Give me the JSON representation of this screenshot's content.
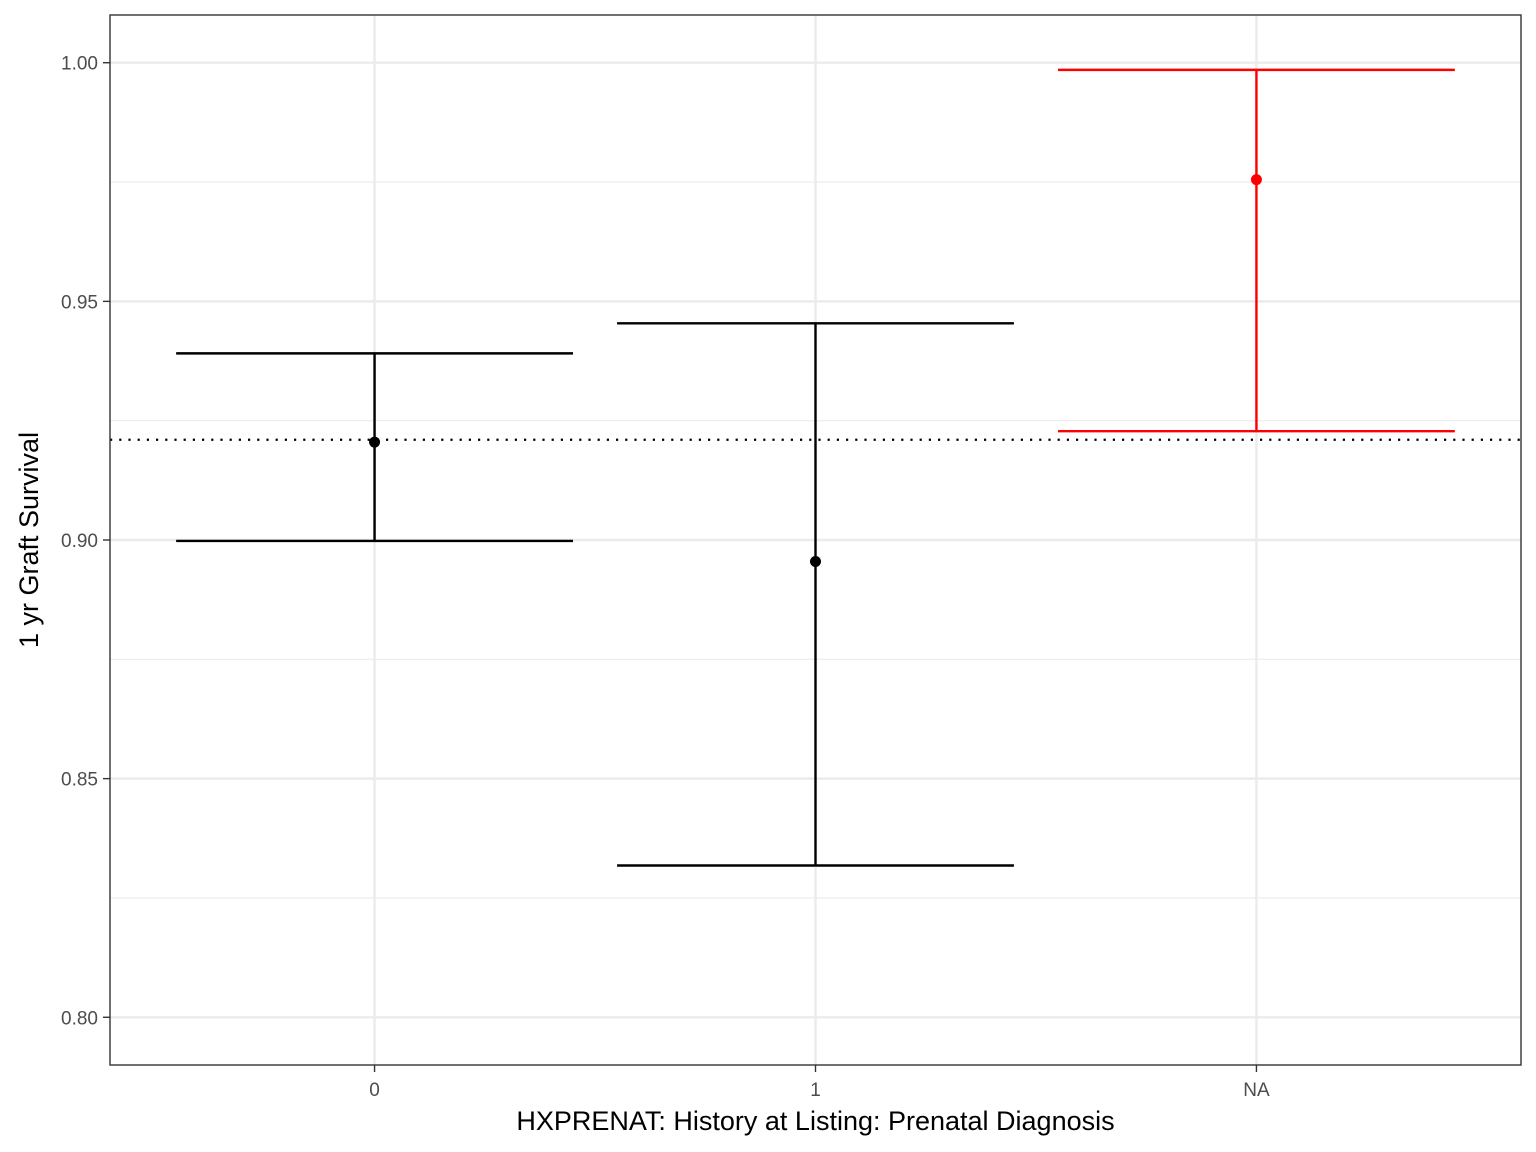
{
  "chart_data": {
    "type": "errorbar",
    "title": "",
    "xlabel": "HXPRENAT: History at Listing: Prenatal Diagnosis",
    "ylabel": "1 yr Graft Survival",
    "categories": [
      "0",
      "1",
      "NA"
    ],
    "estimates": [
      0.9205,
      0.8955,
      0.9755
    ],
    "lower": [
      0.8998,
      0.8318,
      0.9228
    ],
    "upper": [
      0.9391,
      0.9454,
      0.9985
    ],
    "colors": [
      "#000000",
      "#000000",
      "#ff0000"
    ],
    "reference_line": 0.921,
    "reference_line_style": "dotted",
    "ylim": [
      0.79,
      1.01
    ],
    "yticks": [
      "0.80",
      "0.85",
      "0.90",
      "0.95",
      "1.00"
    ],
    "grid": true,
    "legend": "none"
  }
}
